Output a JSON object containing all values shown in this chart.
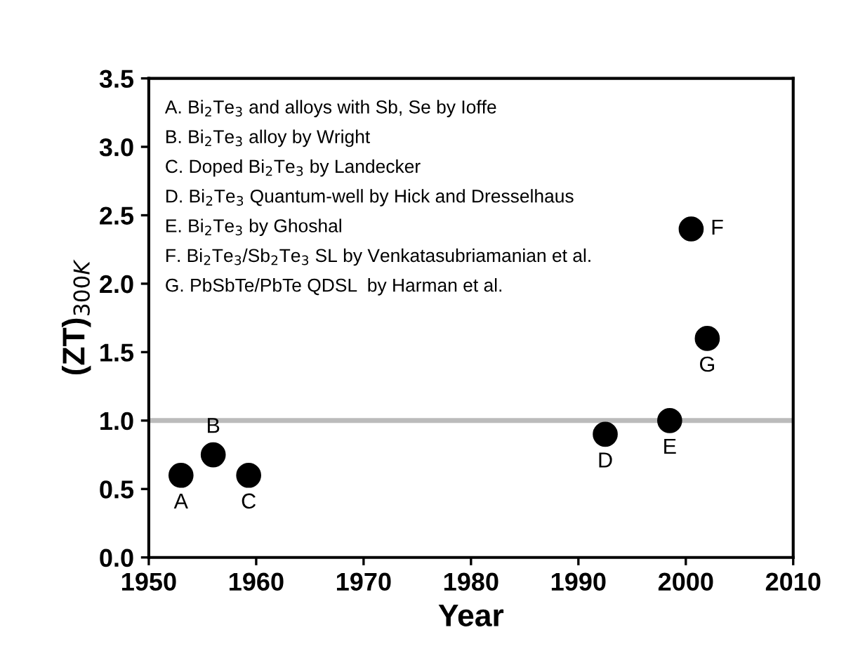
{
  "chart_data": {
    "type": "scatter",
    "xlabel": "Year",
    "ylabel": "(ZT)$_{300K}$",
    "x": [
      1953,
      1956,
      1959.3,
      1992.5,
      1998.5,
      2000.5,
      2002
    ],
    "series": [
      {
        "color": "#000000",
        "values": [
          0.6,
          0.75,
          0.6,
          0.9,
          1.0,
          2.4,
          1.6
        ]
      }
    ],
    "marker": "circle",
    "grid": false,
    "xlim": [
      1950,
      2010
    ],
    "xticks": [
      1950,
      1960,
      1970,
      1980,
      1990,
      2000,
      2010
    ],
    "ylim": [
      0,
      3.5
    ],
    "yticks": [
      {
        "value": 0,
        "label": "0.0"
      },
      0.5,
      {
        "value": 1,
        "label": "1.0"
      },
      1.5,
      {
        "value": 2,
        "label": "2.0"
      },
      2.5,
      {
        "value": 3,
        "label": "3.0"
      },
      3.5
    ],
    "ref_lines": [
      {
        "axis": "y",
        "value": 1.0,
        "color": "#bbbbbb"
      }
    ],
    "annotations": [
      "A. Bi$_{2}$Te$_{3}$ and alloys with Sb, Se by Ioffe",
      "B. Bi$_{2}$Te$_{3}$ alloy by Wright",
      "C. Doped Bi$_{2}$Te$_{3}$ by Landecker",
      "D. Bi$_{2}$Te$_{3}$ Quantum-well by Hick and Dresselhaus",
      "E. Bi$_{2}$Te$_{3}$ by Ghoshal",
      "F. Bi$_{2}$Te$_{3}$/Sb$_{2}$Te$_{3}$ SL by Venkatasubriamanian et al.",
      "G. PbSbTe/PbTe QDSL  by Harman et al.",
      {
        "text": "A",
        "x": 1953,
        "y": 0.6
      },
      {
        "text": "B",
        "x": 1956,
        "y": 0.75
      },
      {
        "text": "C",
        "x": 1959.3,
        "y": 0.6
      },
      {
        "text": "D",
        "x": 1992.5,
        "y": 0.9
      },
      {
        "text": "E",
        "x": 1998.5,
        "y": 1.0
      },
      {
        "text": "F",
        "x": 2000.5,
        "y": 2.4
      },
      {
        "text": "G",
        "x": 2002,
        "y": 1.6
      }
    ]
  }
}
